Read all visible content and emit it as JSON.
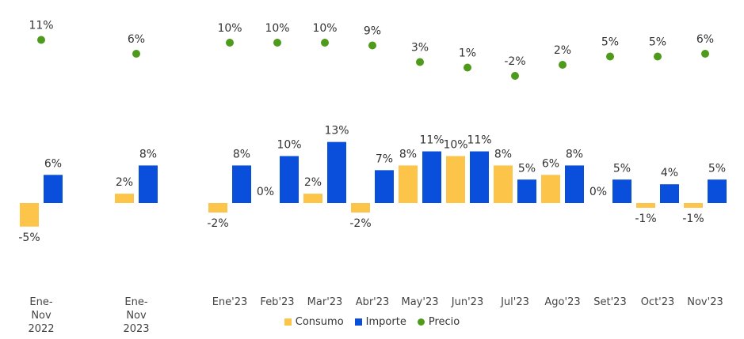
{
  "chart_data": {
    "type": "bar",
    "categories": [
      "Ene-\nNov\n2022",
      "Ene-\nNov\n2023",
      "Ene'23",
      "Feb'23",
      "Mar'23",
      "Abr'23",
      "May'23",
      "Jun'23",
      "Jul'23",
      "Ago'23",
      "Set'23",
      "Oct'23",
      "Nov'23"
    ],
    "series": [
      {
        "name": "Consumo",
        "type": "bar",
        "color": "#fcc54a",
        "values": [
          -5,
          2,
          -2,
          0,
          2,
          -2,
          8,
          10,
          8,
          6,
          0,
          -1,
          -1
        ],
        "value_labels": [
          "-5%",
          "2%",
          "-2%",
          "0%",
          "2%",
          "-2%",
          "8%",
          "10%",
          "8%",
          "6%",
          "0%",
          "-1%",
          "-1%"
        ]
      },
      {
        "name": "Importe",
        "type": "bar",
        "color": "#0a4fdc",
        "values": [
          6,
          8,
          8,
          10,
          13,
          7,
          11,
          11,
          5,
          8,
          5,
          4,
          5
        ],
        "value_labels": [
          "6%",
          "8%",
          "8%",
          "10%",
          "13%",
          "7%",
          "11%",
          "11%",
          "5%",
          "8%",
          "5%",
          "4%",
          "5%"
        ]
      },
      {
        "name": "Precio",
        "type": "scatter",
        "color": "#4e9a1a",
        "values": [
          11,
          6,
          10,
          10,
          10,
          9,
          3,
          1,
          -2,
          2,
          5,
          5,
          6
        ],
        "value_labels": [
          "11%",
          "6%",
          "10%",
          "10%",
          "10%",
          "9%",
          "3%",
          "1%",
          "-2%",
          "2%",
          "5%",
          "5%",
          "6%"
        ]
      }
    ]
  }
}
